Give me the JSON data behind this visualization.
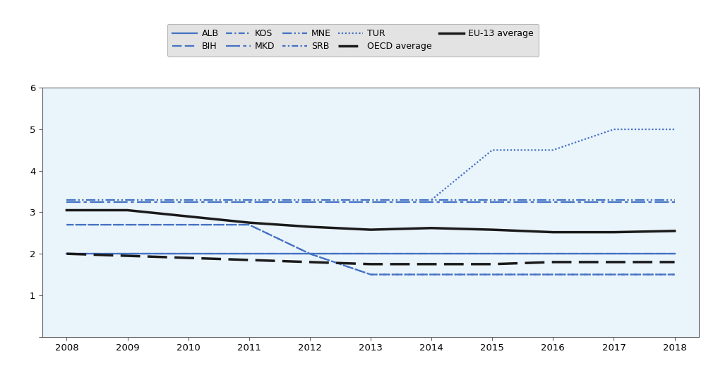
{
  "years": [
    2008,
    2009,
    2010,
    2011,
    2012,
    2013,
    2014,
    2015,
    2016,
    2017,
    2018
  ],
  "ALB": [
    2.0,
    2.0,
    2.0,
    2.0,
    2.0,
    2.0,
    2.0,
    2.0,
    2.0,
    2.0,
    2.0
  ],
  "BIH": [
    2.0,
    2.0,
    2.0,
    2.0,
    2.0,
    2.0,
    2.0,
    2.0,
    2.0,
    2.0,
    2.0
  ],
  "KOS": [
    2.7,
    2.7,
    2.7,
    2.7,
    2.0,
    1.5,
    1.5,
    1.5,
    1.5,
    1.5,
    1.5
  ],
  "MKD": [
    3.25,
    3.25,
    3.25,
    3.25,
    3.25,
    3.25,
    3.25,
    3.25,
    3.25,
    3.25,
    3.25
  ],
  "MNE": [
    3.3,
    3.3,
    3.3,
    3.3,
    3.3,
    3.3,
    3.3,
    3.3,
    3.3,
    3.3,
    3.3
  ],
  "SRB": [
    2.7,
    2.7,
    2.7,
    2.7,
    2.0,
    1.5,
    1.5,
    1.5,
    1.5,
    1.5,
    1.5
  ],
  "TUR": [
    null,
    null,
    null,
    null,
    null,
    null,
    3.3,
    4.5,
    4.5,
    5.0,
    5.0
  ],
  "OECD": [
    2.0,
    1.95,
    1.9,
    1.85,
    1.8,
    1.75,
    1.75,
    1.75,
    1.8,
    1.8,
    1.8
  ],
  "EU13": [
    3.05,
    3.05,
    2.9,
    2.75,
    2.65,
    2.58,
    2.62,
    2.58,
    2.52,
    2.52,
    2.55
  ],
  "line_color": "#4472C4",
  "black_color": "#1a1a1a",
  "background_color": "#EAF4FB",
  "legend_background": "#DCDCDC",
  "ylim": [
    0,
    6
  ],
  "yticks": [
    0,
    1,
    2,
    3,
    4,
    5,
    6
  ]
}
